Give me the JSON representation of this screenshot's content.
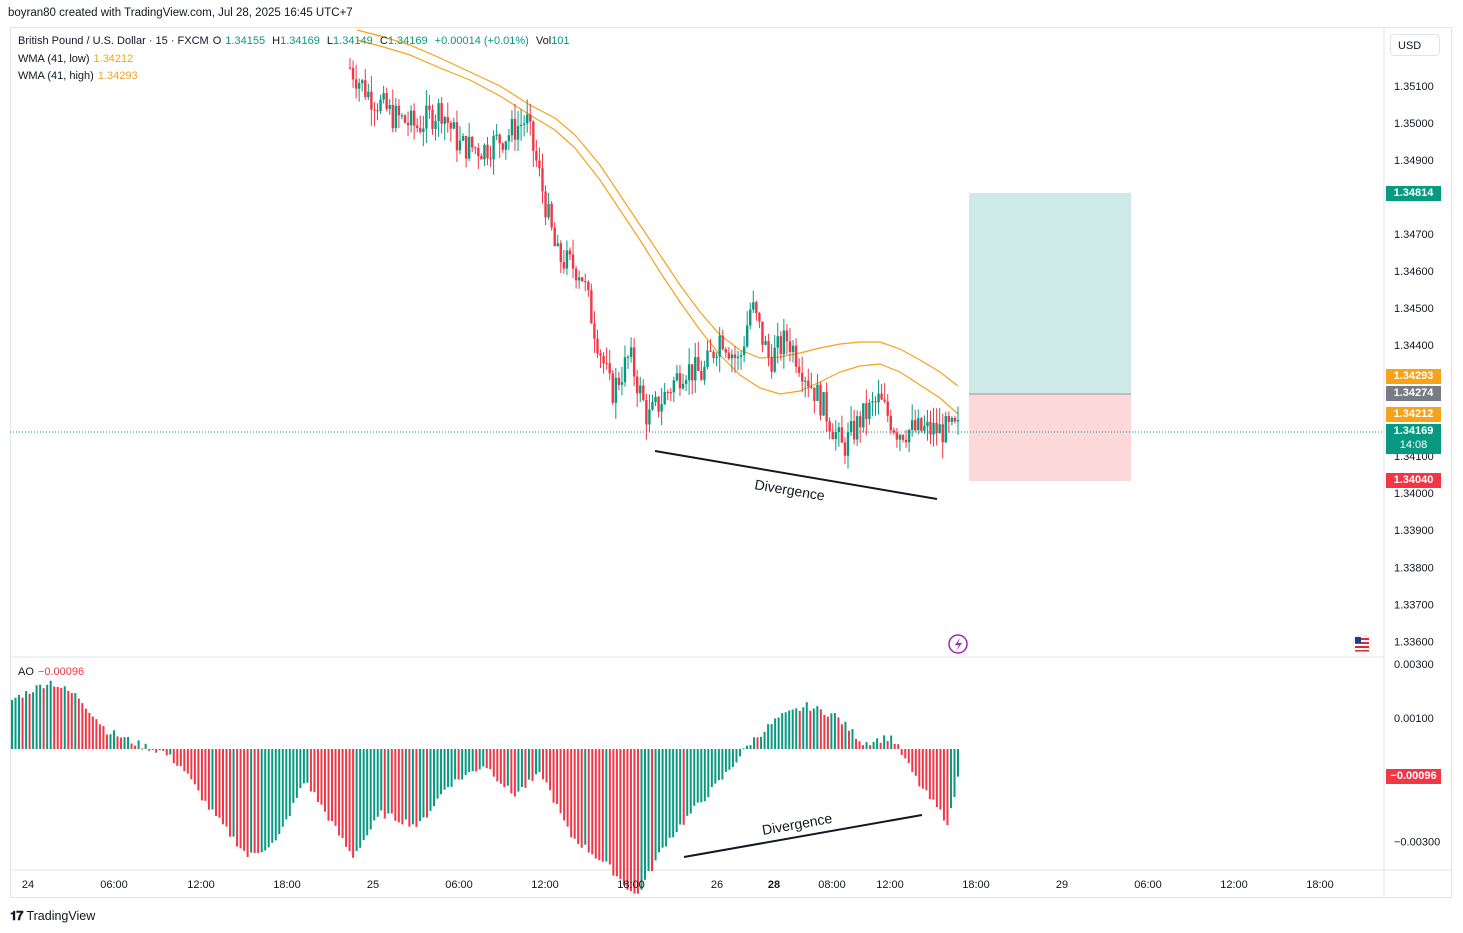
{
  "header": {
    "credit": "boyran80 created with TradingView.com, Jul 28, 2025 16:45 UTC+7"
  },
  "legend": {
    "symbol": "British Pound / U.S. Dollar · 15 · FXCM",
    "o_label": "O",
    "o_value": "1.34155",
    "h_label": "H",
    "h_value": "1.34169",
    "l_label": "L",
    "l_value": "1.34149",
    "c_label": "C",
    "c_value": "1.34169",
    "change": "+0.00014 (+0.01%)",
    "vol_label": "Vol",
    "vol_value": "101",
    "wma_low_label": "WMA (41, low)",
    "wma_low_value": "1.34212",
    "wma_high_label": "WMA (41, high)",
    "wma_high_value": "1.34293"
  },
  "ao_legend": {
    "label": "AO",
    "value": "−0.00096"
  },
  "currency_button": "USD",
  "price_axis": {
    "ticks": [
      "1.35100",
      "1.35000",
      "1.34900",
      "1.34700",
      "1.34600",
      "1.34500",
      "1.34400",
      "1.34100",
      "1.34000",
      "1.33900",
      "1.33800",
      "1.33700",
      "1.33600"
    ]
  },
  "price_tags": {
    "target": "1.34814",
    "wma_high": "1.34293",
    "entry": "1.34274",
    "wma_low": "1.34212",
    "last": "1.34169",
    "countdown": "14:08",
    "stop": "1.34040"
  },
  "ao_axis": {
    "ticks": [
      "0.00300",
      "0.00100",
      "−0.00300"
    ],
    "current_tag": "−0.00096"
  },
  "time_axis": {
    "labels": [
      "24",
      "06:00",
      "12:00",
      "18:00",
      "25",
      "06:00",
      "12:00",
      "18:00",
      "26",
      "28",
      "08:00",
      "12:00",
      "18:00",
      "29",
      "06:00",
      "12:00",
      "18:00"
    ]
  },
  "annotations": {
    "price_divergence": "Divergence",
    "ao_divergence": "Divergence"
  },
  "branding": {
    "name": "TradingView"
  },
  "colors": {
    "up": "#089981",
    "down": "#f23645",
    "wma": "#f7a21b",
    "target_zone": "#cdeae8",
    "stop_zone": "#fcd8d8"
  },
  "chart_data": [
    {
      "type": "candlestick",
      "title": "British Pound / U.S. Dollar · 15 · FXCM",
      "ylim": [
        1.3355,
        1.3521
      ],
      "series": [
        {
          "name": "WMA (41, low)",
          "last": 1.34212
        },
        {
          "name": "WMA (41, high)",
          "last": 1.34293
        }
      ],
      "path_points": [
        [
          0,
          1.3515
        ],
        [
          0.03,
          1.3508
        ],
        [
          0.07,
          1.3502
        ],
        [
          0.11,
          1.3499
        ],
        [
          0.15,
          1.3504
        ],
        [
          0.18,
          1.3494
        ],
        [
          0.22,
          1.3493
        ],
        [
          0.26,
          1.3497
        ],
        [
          0.29,
          1.3501
        ],
        [
          0.31,
          1.3487
        ],
        [
          0.34,
          1.3464
        ],
        [
          0.38,
          1.346
        ],
        [
          0.4,
          1.3446
        ],
        [
          0.43,
          1.3427
        ],
        [
          0.46,
          1.3437
        ],
        [
          0.49,
          1.342
        ],
        [
          0.52,
          1.3427
        ],
        [
          0.55,
          1.3434
        ],
        [
          0.58,
          1.3432
        ],
        [
          0.61,
          1.3443
        ],
        [
          0.64,
          1.3435
        ],
        [
          0.66,
          1.3451
        ],
        [
          0.69,
          1.3436
        ],
        [
          0.72,
          1.3442
        ],
        [
          0.75,
          1.3432
        ],
        [
          0.78,
          1.3423
        ],
        [
          0.81,
          1.3412
        ],
        [
          0.84,
          1.342
        ],
        [
          0.87,
          1.3425
        ],
        [
          0.9,
          1.3417
        ]
      ],
      "position": {
        "target": 1.34814,
        "entry": 1.34274,
        "stop": 1.3404
      },
      "last_price": 1.34169
    },
    {
      "type": "bar",
      "title": "AO",
      "ylim": [
        -0.0036,
        0.0032
      ],
      "profile_points": [
        [
          0,
          0.0016
        ],
        [
          0.04,
          0.0022
        ],
        [
          0.07,
          0.0017
        ],
        [
          0.1,
          0.0006
        ],
        [
          0.13,
          0.0002
        ],
        [
          0.16,
          -0.0001
        ],
        [
          0.18,
          -0.0006
        ],
        [
          0.21,
          -0.002
        ],
        [
          0.25,
          -0.0035
        ],
        [
          0.28,
          -0.003
        ],
        [
          0.31,
          -0.001
        ],
        [
          0.33,
          -0.002
        ],
        [
          0.36,
          -0.0035
        ],
        [
          0.39,
          -0.0021
        ],
        [
          0.43,
          -0.0025
        ],
        [
          0.46,
          -0.0012
        ],
        [
          0.5,
          -0.0005
        ],
        [
          0.53,
          -0.0015
        ],
        [
          0.56,
          -0.0008
        ],
        [
          0.59,
          -0.0028
        ],
        [
          0.63,
          -0.0038
        ],
        [
          0.66,
          -0.0048
        ],
        [
          0.69,
          -0.0031
        ],
        [
          0.72,
          -0.002
        ],
        [
          0.75,
          -0.001
        ],
        [
          0.78,
          0.0002
        ],
        [
          0.81,
          0.001
        ],
        [
          0.84,
          0.0014
        ],
        [
          0.87,
          0.0011
        ],
        [
          0.9,
          0.0002
        ],
        [
          0.93,
          0.0004
        ],
        [
          0.96,
          -0.0012
        ],
        [
          0.99,
          -0.0024
        ],
        [
          1.0,
          -0.00096
        ]
      ]
    }
  ]
}
